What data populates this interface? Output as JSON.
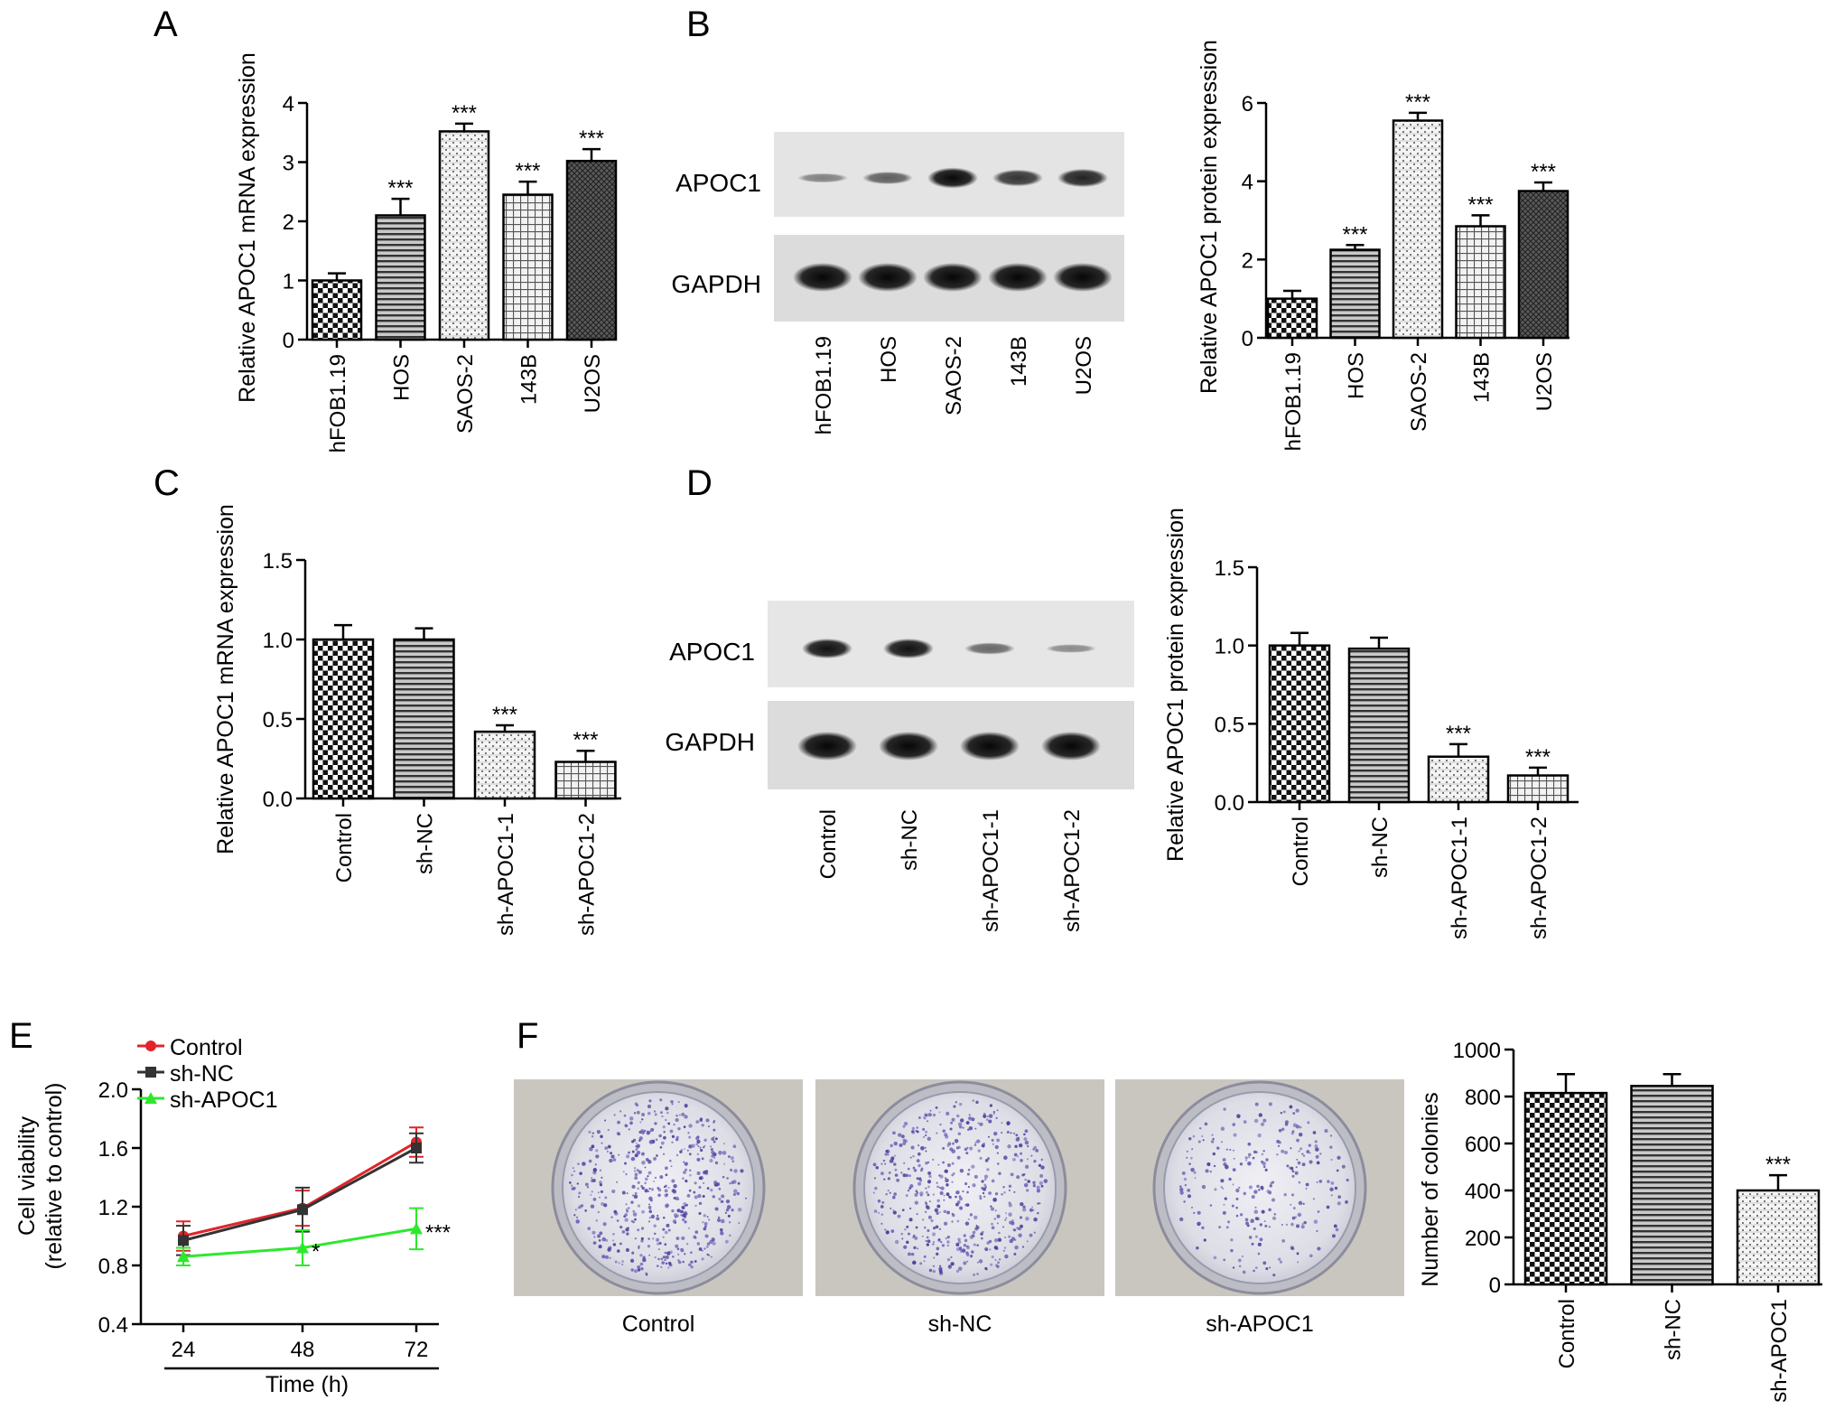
{
  "panel_labels": [
    "A",
    "B",
    "C",
    "D",
    "E",
    "F"
  ],
  "blot_panels": [
    {
      "id": "B",
      "rows": [
        "APOC1",
        "GAPDH"
      ],
      "lanes": [
        "hFOB1.19",
        "HOS",
        "SAOS-2",
        "143B",
        "U2OS"
      ],
      "apoc1_intensity": [
        0.25,
        0.45,
        0.95,
        0.7,
        0.8
      ]
    },
    {
      "id": "D",
      "rows": [
        "APOC1",
        "GAPDH"
      ],
      "lanes": [
        "Control",
        "sh-NC",
        "sh-APOC1-1",
        "sh-APOC1-2"
      ],
      "apoc1_intensity": [
        0.9,
        0.9,
        0.4,
        0.2
      ]
    }
  ],
  "colony_images": {
    "labels": [
      "Control",
      "sh-NC",
      "sh-APOC1"
    ],
    "density": [
      1.0,
      1.0,
      0.5
    ]
  },
  "chart_data": [
    {
      "id": "A",
      "type": "bar",
      "ylabel": "Relative APOC1 mRNA expression",
      "categories": [
        "hFOB1.19",
        "HOS",
        "SAOS-2",
        "143B",
        "U2OS"
      ],
      "values": [
        1.0,
        2.1,
        3.52,
        2.45,
        3.02
      ],
      "errors": [
        0.12,
        0.28,
        0.13,
        0.22,
        0.2
      ],
      "significance": [
        "",
        "***",
        "***",
        "***",
        "***"
      ],
      "patterns": [
        "check",
        "hlines",
        "dots",
        "grid",
        "crosshatch"
      ],
      "ylim": [
        0,
        4
      ],
      "yticks": [
        "0",
        "1",
        "2",
        "3",
        "4"
      ]
    },
    {
      "id": "B",
      "type": "bar",
      "ylabel": "Relative APOC1 protein expression",
      "categories": [
        "hFOB1.19",
        "HOS",
        "SAOS-2",
        "143B",
        "U2OS"
      ],
      "values": [
        1.0,
        2.25,
        5.55,
        2.85,
        3.75
      ],
      "errors": [
        0.2,
        0.12,
        0.2,
        0.28,
        0.22
      ],
      "significance": [
        "",
        "***",
        "***",
        "***",
        "***"
      ],
      "patterns": [
        "check",
        "hlines",
        "dots",
        "grid",
        "crosshatch"
      ],
      "ylim": [
        0,
        6
      ],
      "yticks": [
        "0",
        "2",
        "4",
        "6"
      ]
    },
    {
      "id": "C",
      "type": "bar",
      "ylabel": "Relative APOC1 mRNA expression",
      "categories": [
        "Control",
        "sh-NC",
        "sh-APOC1-1",
        "sh-APOC1-2"
      ],
      "values": [
        1.0,
        1.0,
        0.42,
        0.23
      ],
      "errors": [
        0.09,
        0.07,
        0.04,
        0.07
      ],
      "significance": [
        "",
        "",
        "***",
        "***"
      ],
      "patterns": [
        "check",
        "hlines",
        "dots",
        "grid"
      ],
      "ylim": [
        0,
        1.5
      ],
      "yticks": [
        "0.0",
        "0.5",
        "1.0",
        "1.5"
      ]
    },
    {
      "id": "D",
      "type": "bar",
      "ylabel": "Relative APOC1 protein expression",
      "categories": [
        "Control",
        "sh-NC",
        "sh-APOC1-1",
        "sh-APOC1-2"
      ],
      "values": [
        1.0,
        0.98,
        0.29,
        0.17
      ],
      "errors": [
        0.08,
        0.07,
        0.08,
        0.05
      ],
      "significance": [
        "",
        "",
        "***",
        "***"
      ],
      "patterns": [
        "check",
        "hlines",
        "dots",
        "grid"
      ],
      "ylim": [
        0,
        1.5
      ],
      "yticks": [
        "0.0",
        "0.5",
        "1.0",
        "1.5"
      ]
    },
    {
      "id": "E",
      "type": "line",
      "xlabel": "Time (h)",
      "ylabel_lines": [
        "Cell viability",
        "(relative to control)"
      ],
      "x": [
        "24",
        "48",
        "72"
      ],
      "series": [
        {
          "name": "Control",
          "color": "#e0242a",
          "marker": "circle",
          "values": [
            1.0,
            1.19,
            1.64
          ],
          "errors": [
            0.1,
            0.12,
            0.1
          ]
        },
        {
          "name": "sh-NC",
          "color": "#333333",
          "marker": "square",
          "values": [
            0.97,
            1.18,
            1.6
          ],
          "errors": [
            0.1,
            0.15,
            0.1
          ]
        },
        {
          "name": "sh-APOC1",
          "color": "#2ee82e",
          "marker": "triangle",
          "values": [
            0.86,
            0.92,
            1.05
          ],
          "errors": [
            0.06,
            0.12,
            0.14
          ]
        }
      ],
      "significance": [
        "",
        "*",
        "***"
      ],
      "ylim": [
        0.4,
        2.0
      ],
      "yticks": [
        "0.4",
        "0.8",
        "1.2",
        "1.6",
        "2.0"
      ]
    },
    {
      "id": "F",
      "type": "bar",
      "ylabel": "Number of colonies",
      "categories": [
        "Control",
        "sh-NC",
        "sh-APOC1"
      ],
      "values": [
        815,
        845,
        400
      ],
      "errors": [
        80,
        50,
        65
      ],
      "significance": [
        "",
        "",
        "***"
      ],
      "patterns": [
        "check",
        "hlines",
        "dots"
      ],
      "ylim": [
        0,
        1000
      ],
      "yticks": [
        "0",
        "200",
        "400",
        "600",
        "800",
        "1000"
      ]
    }
  ]
}
